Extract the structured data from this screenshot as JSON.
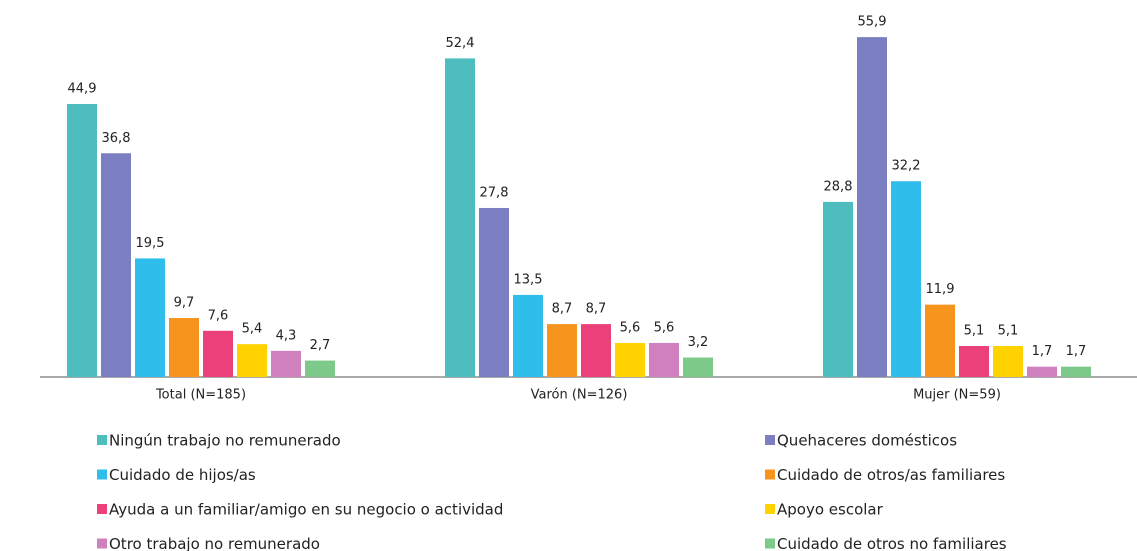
{
  "chart_data": {
    "type": "bar",
    "categories": [
      "Total (N=185)",
      "Varón (N=126)",
      "Mujer (N=59)"
    ],
    "series": [
      {
        "name": "Ningún trabajo no remunerado",
        "color": "#4dbdbd",
        "values": [
          44.9,
          52.4,
          28.8
        ],
        "value_labels": [
          "44,9",
          "52,4",
          "28,8"
        ]
      },
      {
        "name": "Quehaceres domésticos",
        "color": "#7b7fc1",
        "values": [
          36.8,
          27.8,
          55.9
        ],
        "value_labels": [
          "36,8",
          "27,8",
          "55,9"
        ]
      },
      {
        "name": "Cuidado de hijos/as",
        "color": "#2fbdec",
        "values": [
          19.5,
          13.5,
          32.2
        ],
        "value_labels": [
          "19,5",
          "13,5",
          "32,2"
        ]
      },
      {
        "name": "Cuidado de otros/as familiares",
        "color": "#f7941d",
        "values": [
          9.7,
          8.7,
          11.9
        ],
        "value_labels": [
          "9,7",
          "8,7",
          "11,9"
        ]
      },
      {
        "name": "Ayuda a un familiar/amigo en su negocio o actividad",
        "color": "#ec407a",
        "values": [
          7.6,
          8.7,
          5.1
        ],
        "value_labels": [
          "7,6",
          "8,7",
          "5,1"
        ]
      },
      {
        "name": "Apoyo escolar",
        "color": "#ffd200",
        "values": [
          5.4,
          5.6,
          5.1
        ],
        "value_labels": [
          "5,4",
          "5,6",
          "5,1"
        ]
      },
      {
        "name": "Otro trabajo no remunerado",
        "color": "#d07fbf",
        "values": [
          4.3,
          5.6,
          1.7
        ],
        "value_labels": [
          "4,3",
          "5,6",
          "1,7"
        ]
      },
      {
        "name": "Cuidado de otros no familiares",
        "color": "#7dc98a",
        "values": [
          2.7,
          3.2,
          1.7
        ],
        "value_labels": [
          "2,7",
          "3,2",
          "1,7"
        ]
      }
    ]
  }
}
